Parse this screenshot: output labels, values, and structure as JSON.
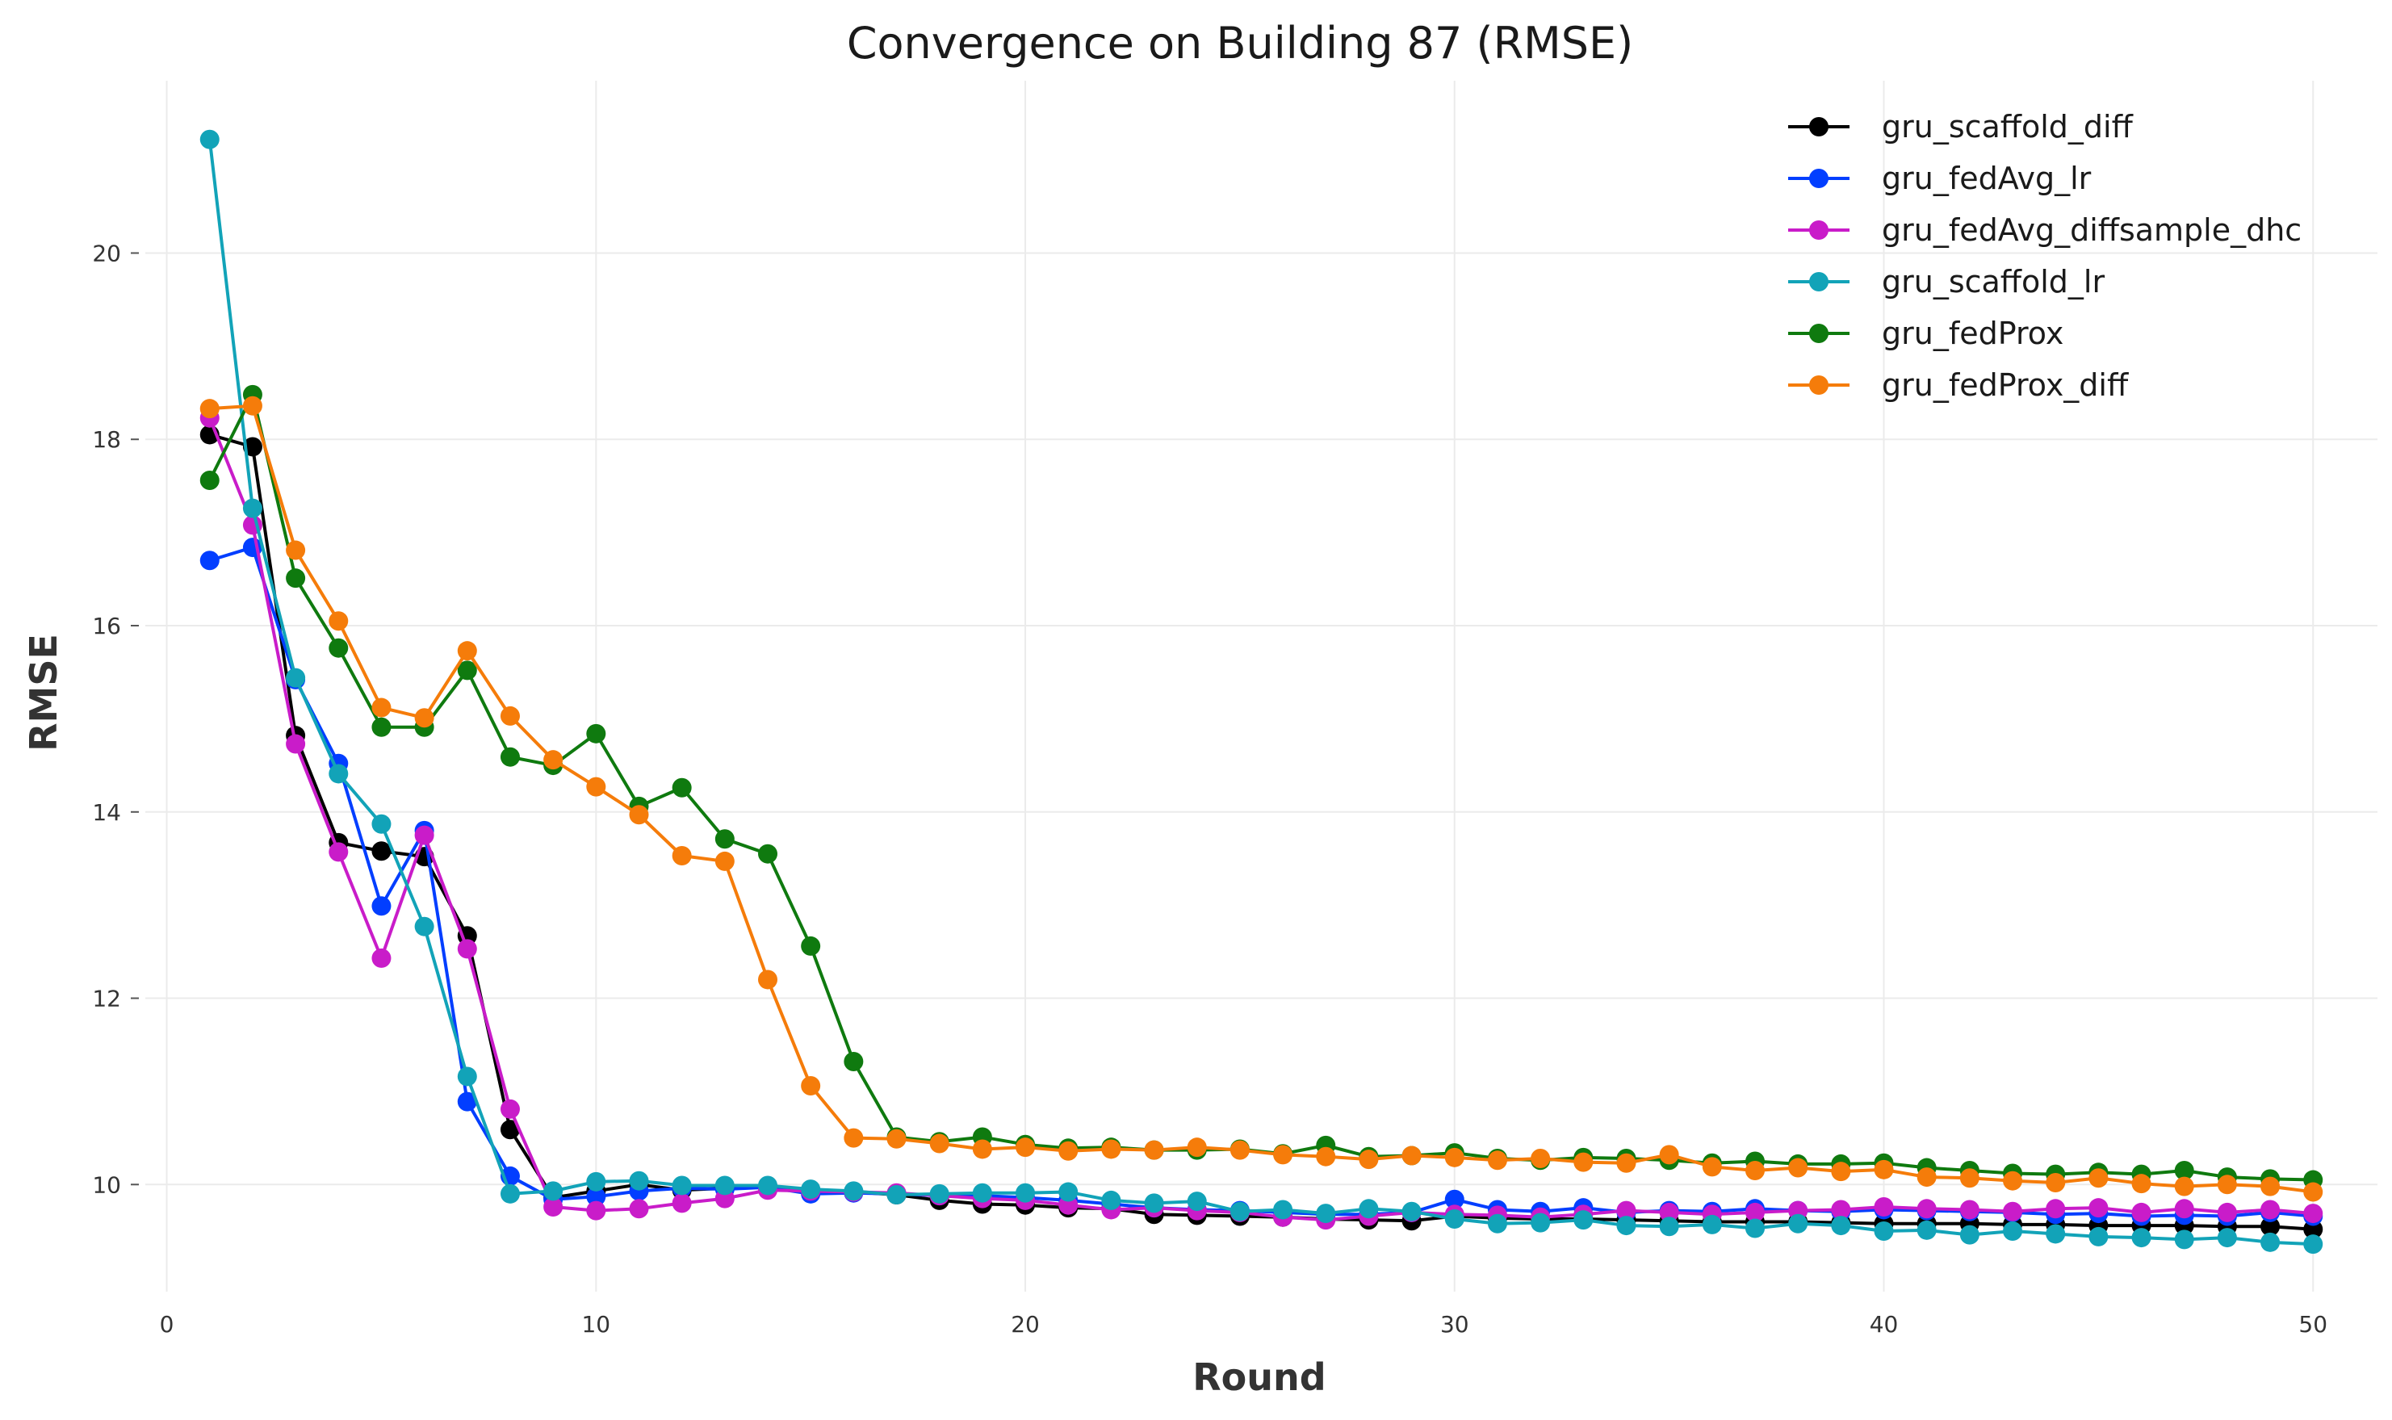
{
  "chart_data": {
    "type": "line",
    "title": "Convergence on Building 87 (RMSE)",
    "xlabel": "Round",
    "ylabel": "RMSE",
    "xlim": [
      -0.5,
      51.5
    ],
    "ylim": [
      8.85,
      21.85
    ],
    "xticks": [
      0,
      10,
      20,
      30,
      40,
      50
    ],
    "xtick_labels": [
      "0",
      "10",
      "20",
      "30",
      "40",
      "50"
    ],
    "yticks": [
      10,
      12,
      14,
      16,
      18,
      20
    ],
    "ytick_labels": [
      "10",
      "12",
      "14",
      "16",
      "18",
      "20"
    ],
    "grid": true,
    "legend_position": "top-right",
    "x": [
      1,
      2,
      3,
      4,
      5,
      6,
      7,
      8,
      9,
      10,
      11,
      12,
      13,
      14,
      15,
      16,
      17,
      18,
      19,
      20,
      21,
      22,
      23,
      24,
      25,
      26,
      27,
      28,
      29,
      30,
      31,
      32,
      33,
      34,
      35,
      36,
      37,
      38,
      39,
      40,
      41,
      42,
      43,
      44,
      45,
      46,
      47,
      48,
      49,
      50
    ],
    "series": [
      {
        "name": "gru_scaffold_diff",
        "color": "#000000",
        "values": [
          18.05,
          17.92,
          14.82,
          13.67,
          13.58,
          13.52,
          12.67,
          10.59,
          9.86,
          9.93,
          10.0,
          9.94,
          9.96,
          9.98,
          9.94,
          9.92,
          9.89,
          9.83,
          9.79,
          9.78,
          9.75,
          9.74,
          9.68,
          9.67,
          9.66,
          9.65,
          9.63,
          9.62,
          9.61,
          9.66,
          9.64,
          9.63,
          9.63,
          9.62,
          9.61,
          9.6,
          9.6,
          9.6,
          9.59,
          9.58,
          9.58,
          9.58,
          9.57,
          9.57,
          9.56,
          9.56,
          9.56,
          9.55,
          9.55,
          9.52
        ]
      },
      {
        "name": "gru_fedAvg_lr",
        "color": "#023eff",
        "values": [
          16.7,
          16.84,
          15.42,
          14.52,
          12.99,
          13.8,
          10.89,
          10.09,
          9.84,
          9.87,
          9.93,
          9.96,
          9.95,
          9.97,
          9.9,
          9.91,
          9.9,
          9.88,
          9.88,
          9.86,
          9.83,
          9.79,
          9.75,
          9.73,
          9.72,
          9.7,
          9.68,
          9.68,
          9.7,
          9.84,
          9.73,
          9.71,
          9.75,
          9.7,
          9.72,
          9.71,
          9.74,
          9.72,
          9.71,
          9.73,
          9.72,
          9.71,
          9.7,
          9.68,
          9.69,
          9.66,
          9.67,
          9.66,
          9.7,
          9.66
        ]
      },
      {
        "name": "gru_fedAvg_diffsample_dhc",
        "color": "#c91cc9",
        "values": [
          18.23,
          17.08,
          14.73,
          13.57,
          12.43,
          13.75,
          12.53,
          10.81,
          9.76,
          9.72,
          9.74,
          9.8,
          9.85,
          9.94,
          9.93,
          9.92,
          9.91,
          9.88,
          9.85,
          9.83,
          9.78,
          9.73,
          9.75,
          9.72,
          9.7,
          9.65,
          9.62,
          9.66,
          9.7,
          9.68,
          9.67,
          9.65,
          9.68,
          9.72,
          9.7,
          9.68,
          9.7,
          9.72,
          9.73,
          9.76,
          9.74,
          9.73,
          9.71,
          9.74,
          9.75,
          9.7,
          9.74,
          9.7,
          9.73,
          9.69
        ]
      },
      {
        "name": "gru_scaffold_lr",
        "color": "#12a3b8",
        "values": [
          21.22,
          17.26,
          15.44,
          14.41,
          13.87,
          12.77,
          11.16,
          9.9,
          9.93,
          10.03,
          10.04,
          9.99,
          9.99,
          9.99,
          9.95,
          9.93,
          9.89,
          9.9,
          9.91,
          9.91,
          9.92,
          9.83,
          9.8,
          9.82,
          9.71,
          9.73,
          9.69,
          9.74,
          9.71,
          9.63,
          9.58,
          9.59,
          9.62,
          9.56,
          9.55,
          9.57,
          9.53,
          9.58,
          9.56,
          9.5,
          9.51,
          9.46,
          9.5,
          9.47,
          9.44,
          9.43,
          9.41,
          9.43,
          9.38,
          9.36
        ]
      },
      {
        "name": "gru_fedProx",
        "color": "#0f7a0f",
        "values": [
          17.56,
          18.48,
          16.51,
          15.76,
          14.91,
          14.91,
          15.52,
          14.59,
          14.5,
          14.84,
          14.06,
          14.26,
          13.71,
          13.55,
          12.56,
          11.32,
          10.51,
          10.46,
          10.51,
          10.43,
          10.39,
          10.4,
          10.37,
          10.37,
          10.38,
          10.33,
          10.42,
          10.3,
          10.31,
          10.34,
          10.28,
          10.26,
          10.29,
          10.28,
          10.26,
          10.23,
          10.25,
          10.22,
          10.22,
          10.23,
          10.18,
          10.15,
          10.12,
          10.11,
          10.13,
          10.11,
          10.15,
          10.08,
          10.06,
          10.05
        ]
      },
      {
        "name": "gru_fedProx_diff",
        "color": "#f57c0a",
        "values": [
          18.33,
          18.36,
          16.81,
          16.05,
          15.12,
          15.01,
          15.73,
          15.03,
          14.56,
          14.27,
          13.97,
          13.53,
          13.47,
          12.2,
          11.06,
          10.5,
          10.49,
          10.44,
          10.38,
          10.4,
          10.36,
          10.38,
          10.37,
          10.4,
          10.37,
          10.32,
          10.3,
          10.27,
          10.31,
          10.29,
          10.26,
          10.28,
          10.24,
          10.23,
          10.32,
          10.19,
          10.15,
          10.18,
          10.14,
          10.16,
          10.08,
          10.07,
          10.04,
          10.02,
          10.07,
          10.01,
          9.98,
          10.0,
          9.98,
          9.92
        ]
      }
    ]
  }
}
